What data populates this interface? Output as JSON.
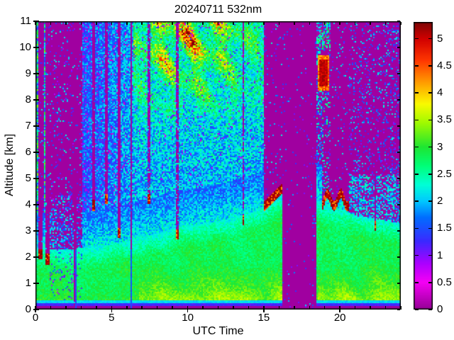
{
  "figure": {
    "title": "20240711 532nm"
  },
  "axes": {
    "xlabel": "UTC Time",
    "ylabel": "Altitude [km]",
    "x_range": [
      0,
      24
    ],
    "y_range": [
      0,
      11
    ],
    "x_tick_values": [
      0,
      5,
      10,
      15,
      20
    ],
    "x_tick_labels": [
      "0",
      "5",
      "10",
      "15",
      "20"
    ],
    "x_minor_step": 1,
    "y_tick_values": [
      0,
      1,
      2,
      3,
      4,
      5,
      6,
      7,
      8,
      9,
      10,
      11
    ],
    "y_tick_labels": [
      "0",
      "1",
      "2",
      "3",
      "4",
      "5",
      "6",
      "7",
      "8",
      "9",
      "10",
      "11"
    ]
  },
  "colorbar": {
    "vmin": 0,
    "vmax": 5.31,
    "tick_values": [
      0,
      0.5,
      1,
      1.5,
      2,
      2.5,
      3,
      3.5,
      4,
      4.5,
      5
    ],
    "tick_labels": [
      "0",
      "0.5",
      "1",
      "1.5",
      "2",
      "2.5",
      "3",
      "3.5",
      "4",
      "4.5",
      "5"
    ]
  },
  "chart_data": {
    "type": "heatmap",
    "title": "20240711 532nm",
    "xlabel": "UTC Time",
    "ylabel": "Altitude [km]",
    "x_range": [
      0,
      24
    ],
    "y_range": [
      0,
      11
    ],
    "colorbar_range": [
      0,
      5.31
    ],
    "colormap_stops": [
      [
        0.0,
        "#960096"
      ],
      [
        0.5,
        "#F500F5"
      ],
      [
        0.85,
        "#AA00FF"
      ],
      [
        1.25,
        "#3C28FF"
      ],
      [
        1.7,
        "#006EFF"
      ],
      [
        2.0,
        "#00C8FF"
      ],
      [
        2.3,
        "#00FFD7"
      ],
      [
        2.65,
        "#00FF78"
      ],
      [
        3.0,
        "#1EE632"
      ],
      [
        3.45,
        "#A0FA00"
      ],
      [
        3.8,
        "#FAFA00"
      ],
      [
        4.2,
        "#FF9B00"
      ],
      [
        4.6,
        "#FF3700"
      ],
      [
        5.0,
        "#D20000"
      ],
      [
        5.31,
        "#7D0505"
      ]
    ],
    "no_data_color": "#910091",
    "surface": {
      "purple_ground_top_km": 0.17,
      "blue_line_top_km": 0.27,
      "cyan_line_top_km": 0.4
    },
    "boundary_layer": {
      "height_km_points": [
        [
          0,
          2.3
        ],
        [
          3,
          2.35
        ],
        [
          6,
          2.6
        ],
        [
          9,
          3.1
        ],
        [
          12,
          3.4
        ],
        [
          14,
          3.7
        ],
        [
          16,
          4.2
        ],
        [
          18.5,
          4.2
        ],
        [
          19,
          4.1
        ],
        [
          21,
          3.6
        ],
        [
          24,
          3.3
        ]
      ],
      "typical_value": 2.8,
      "near_surface_yellow_hours": [
        [
          6.8,
          16.2
        ],
        [
          18.5,
          24
        ]
      ]
    },
    "data_gaps": [
      {
        "t0": 2.55,
        "t1": 2.72
      },
      {
        "t0": 6.27,
        "t1": 6.37
      },
      {
        "t0": 16.18,
        "t1": 18.45
      }
    ],
    "clouds": [
      {
        "t": 0.35,
        "w": 0.26,
        "cap_km": 2.25
      },
      {
        "t": 0.8,
        "w": 0.22,
        "cap_km": 2.05
      },
      {
        "t": 3.85,
        "w": 0.18,
        "cap_km": 4.1
      },
      {
        "t": 4.65,
        "w": 0.18,
        "cap_km": 4.35
      },
      {
        "t": 5.5,
        "w": 0.2,
        "cap_km": 3.05
      },
      {
        "t": 7.45,
        "w": 0.14,
        "cap_km": 4.35,
        "sp": 0.3
      },
      {
        "t": 9.3,
        "w": 0.16,
        "cap_km": 3.0,
        "sp": 0.3
      },
      {
        "t": 13.6,
        "w": 0.12,
        "cap_km": 3.55,
        "sp": 0.3
      },
      {
        "t0": 15.0,
        "t1": 16.18,
        "cap_km": 4.05,
        "cap1_km": 4.75
      },
      {
        "t0": 18.75,
        "t1": 20.55,
        "cap_km": 4.3,
        "wobble_km": 0.25,
        "evening": true
      },
      {
        "t": 22.3,
        "w": 0.12,
        "cap_km": 3.3
      }
    ],
    "high_signal_blob": {
      "t0": 18.55,
      "t1": 19.25,
      "z0": 8.35,
      "z1": 9.7,
      "value": 5.1
    },
    "daytime_noise": {
      "t0": 6.4,
      "t1": 16.2,
      "hot_peak_utc": 10,
      "hot_min_alt_km": 7
    },
    "quiet_purple_periods": [
      {
        "t0": 0.95,
        "t1": 3.05,
        "above_km": 2.3
      },
      {
        "t0": 19.35,
        "t1": 20.55,
        "above_km": 4.3
      },
      {
        "t0": 20.55,
        "t1": 24,
        "above_km": 5.2
      }
    ],
    "regions_notes": [
      "Green boundary layer ~0.4-3.5 km all day, yellow-green patches near surface 07-16 and after 18.5 UTC",
      "Thin blue/cyan lines at ~0.2-0.4 km; solid purple below 0.17 km",
      "00-03 UTC: purple (attenuated) above ~2.3 km with sparse speckles and two colorful full-height columns near 0.1 and 0.65 UTC",
      "03-06.3 UTC: blue/cyan speckle aloft",
      "06.4-16.2 UTC: noisy green aloft with yellow/orange/red solar-noise patches 7-11 km, strongest 8-14 UTC",
      "Low clouds with dark-red tops and purple attenuation streaks above them",
      "16.2-18.45 UTC: full-height solid purple data gap",
      "18.5-19.3 UTC: column with dark red blob at 8.4-9.7 km",
      "19.3-20.6 UTC: purple above cloud deck ~4.3 km",
      "20.6-24 UTC: purple with sparse blue speckles above ~5.2 km"
    ]
  }
}
